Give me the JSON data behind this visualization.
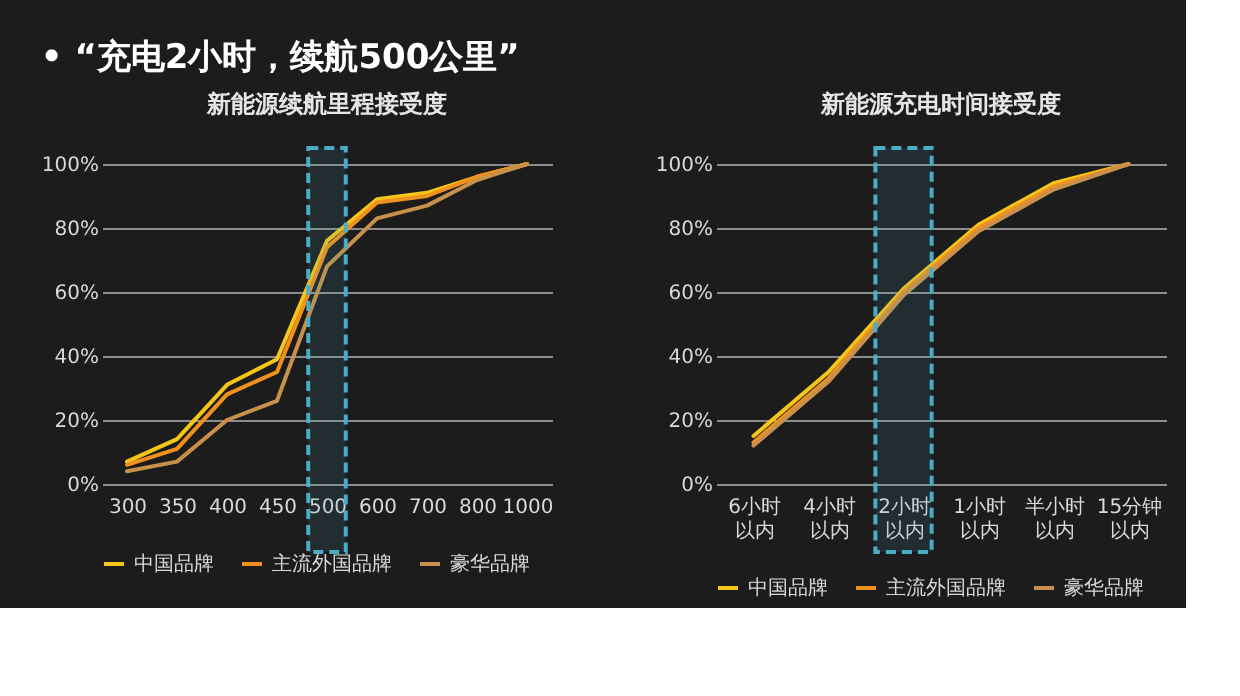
{
  "chart_data": [
    {
      "type": "line",
      "title": "新能源续航里程接受度",
      "annotations": [
        "•  “充电2小时，续航500公里”"
      ],
      "categories": [
        "300",
        "350",
        "400",
        "450",
        "500",
        "600",
        "700",
        "800",
        "1000"
      ],
      "series": [
        {
          "name": "中国品牌",
          "color": "#f5c518",
          "values": [
            7,
            14,
            31,
            39,
            76,
            89,
            91,
            96,
            100
          ]
        },
        {
          "name": "主流外国品牌",
          "color": "#f0901e",
          "values": [
            6,
            11,
            28,
            35,
            74,
            88,
            90,
            96,
            100
          ]
        },
        {
          "name": "豪华品牌",
          "color": "#c8904a",
          "values": [
            4,
            7,
            20,
            26,
            68,
            83,
            87,
            95,
            100
          ]
        }
      ],
      "ylim": [
        0,
        100
      ],
      "yticks": [
        {
          "value": 0,
          "label": "0%"
        },
        {
          "value": 20,
          "label": "20%"
        },
        {
          "value": 40,
          "label": "40%"
        },
        {
          "value": 60,
          "label": "60%"
        },
        {
          "value": 80,
          "label": "80%"
        },
        {
          "value": 100,
          "label": "100%"
        }
      ],
      "grid": "y",
      "legend": "bottom",
      "marker": "none",
      "line_style": "solid",
      "bands": [
        {
          "axis": "x",
          "from": "500",
          "to": "500",
          "color": "#4bacc6"
        }
      ]
    },
    {
      "type": "line",
      "title": "新能源充电时间接受度",
      "categories": [
        "6小时以内",
        "4小时以内",
        "2小时以内",
        "1小时以内",
        "半小时以内",
        "15分钟以内"
      ],
      "series": [
        {
          "name": "中国品牌",
          "color": "#f5c518",
          "values": [
            15,
            35,
            61,
            81,
            94,
            100
          ]
        },
        {
          "name": "主流外国品牌",
          "color": "#f0901e",
          "values": [
            13,
            33,
            60,
            80,
            93,
            100
          ]
        },
        {
          "name": "豪华品牌",
          "color": "#c8904a",
          "values": [
            12,
            32,
            59,
            79,
            92,
            100
          ]
        }
      ],
      "ylim": [
        0,
        100
      ],
      "yticks": [
        {
          "value": 0,
          "label": "0%"
        },
        {
          "value": 20,
          "label": "20%"
        },
        {
          "value": 40,
          "label": "40%"
        },
        {
          "value": 60,
          "label": "60%"
        },
        {
          "value": 80,
          "label": "80%"
        },
        {
          "value": 100,
          "label": "100%"
        }
      ],
      "grid": "y",
      "legend": "bottom",
      "marker": "none",
      "line_style": "solid",
      "bands": [
        {
          "axis": "x",
          "from": "2小时以内",
          "to": "2小时以内",
          "color": "#4bacc6"
        }
      ]
    }
  ]
}
